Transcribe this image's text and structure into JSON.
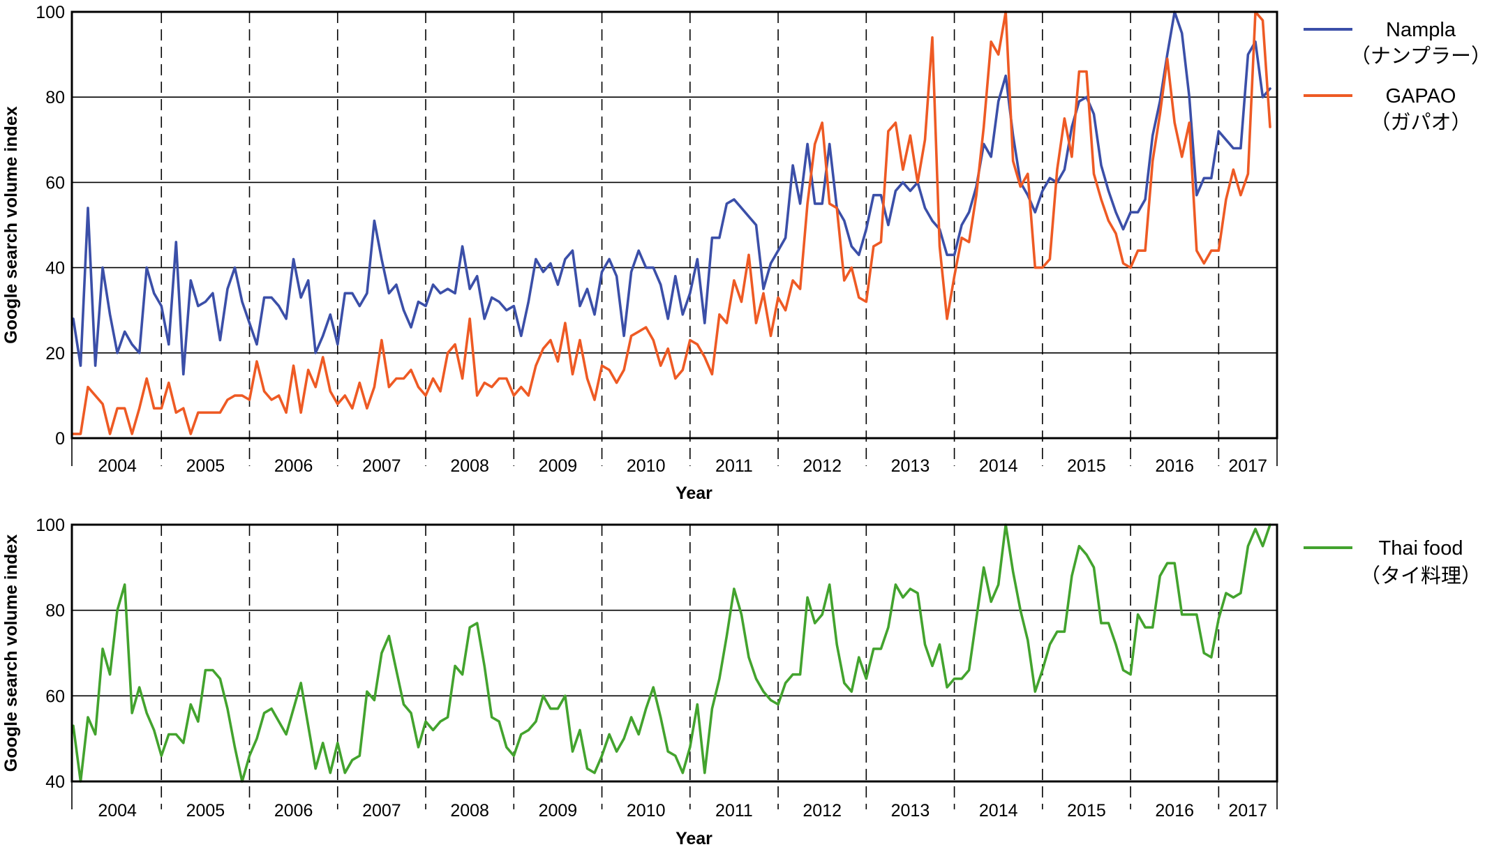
{
  "colors": {
    "nampla": "#3b4fa8",
    "gapao": "#ee5a24",
    "thai": "#43a32e"
  },
  "chart_data": [
    {
      "type": "line",
      "ylabel": "Google search volume index",
      "xlabel": "Year",
      "ylim": [
        0,
        100
      ],
      "yticks": [
        "0",
        "20",
        "40",
        "60",
        "80",
        "100"
      ],
      "year_labels": [
        "2004",
        "2005",
        "2006",
        "2007",
        "2008",
        "2009",
        "2010",
        "2011",
        "2012",
        "2013",
        "2014",
        "2015",
        "2016",
        "2017"
      ],
      "x_range": [
        "2004-01",
        "2017-06"
      ],
      "grid": "horizontal solid gridlines, dashed vertical year boundaries",
      "legend_position": "right",
      "series": [
        {
          "name": "Nampla",
          "name_jp": "（ナンプラー）",
          "color_key": "nampla",
          "values": [
            28,
            17,
            54,
            17,
            40,
            29,
            20,
            25,
            22,
            20,
            40,
            34,
            31,
            22,
            46,
            15,
            37,
            31,
            32,
            34,
            23,
            35,
            40,
            32,
            27,
            22,
            33,
            33,
            31,
            28,
            42,
            33,
            37,
            20,
            24,
            29,
            22,
            34,
            34,
            31,
            34,
            51,
            42,
            34,
            36,
            30,
            26,
            32,
            31,
            36,
            34,
            35,
            34,
            45,
            35,
            38,
            28,
            33,
            32,
            30,
            31,
            24,
            32,
            42,
            39,
            41,
            36,
            42,
            44,
            31,
            35,
            29,
            39,
            42,
            38,
            24,
            39,
            44,
            40,
            40,
            36,
            28,
            38,
            29,
            34,
            42,
            27,
            47,
            47,
            55,
            56,
            54,
            52,
            50,
            35,
            41,
            44,
            47,
            64,
            55,
            69,
            55,
            55,
            69,
            54,
            51,
            45,
            43,
            49,
            57,
            57,
            50,
            58,
            60,
            58,
            60,
            54,
            51,
            49,
            43,
            43,
            50,
            53,
            59,
            69,
            66,
            79,
            85,
            71,
            60,
            57,
            53,
            58,
            61,
            60,
            63,
            73,
            79,
            80,
            76,
            64,
            58,
            53,
            49,
            53,
            53,
            56,
            71,
            79,
            90,
            100,
            95,
            80,
            57,
            61,
            61,
            72,
            70,
            68,
            68,
            90,
            93,
            80,
            82
          ]
        },
        {
          "name": "GAPAO",
          "name_jp": "（ガパオ）",
          "color_key": "gapao",
          "values": [
            1,
            1,
            12,
            10,
            8,
            1,
            7,
            7,
            1,
            7,
            14,
            7,
            7,
            13,
            6,
            7,
            1,
            6,
            6,
            6,
            6,
            9,
            10,
            10,
            9,
            18,
            11,
            9,
            10,
            6,
            17,
            6,
            16,
            12,
            19,
            11,
            8,
            10,
            7,
            13,
            7,
            12,
            23,
            12,
            14,
            14,
            16,
            12,
            10,
            14,
            11,
            20,
            22,
            14,
            28,
            10,
            13,
            12,
            14,
            14,
            10,
            12,
            10,
            17,
            21,
            23,
            18,
            27,
            15,
            23,
            14,
            9,
            17,
            16,
            13,
            16,
            24,
            25,
            26,
            23,
            17,
            21,
            14,
            16,
            23,
            22,
            19,
            15,
            29,
            27,
            37,
            32,
            43,
            27,
            34,
            24,
            33,
            30,
            37,
            35,
            55,
            69,
            74,
            55,
            54,
            37,
            40,
            33,
            32,
            45,
            46,
            72,
            74,
            63,
            71,
            60,
            70,
            94,
            45,
            28,
            38,
            47,
            46,
            57,
            73,
            93,
            90,
            100,
            65,
            59,
            62,
            40,
            40,
            42,
            63,
            75,
            66,
            86,
            86,
            62,
            56,
            51,
            48,
            41,
            40,
            44,
            44,
            65,
            76,
            89,
            74,
            66,
            74,
            44,
            41,
            44,
            44,
            56,
            63,
            57,
            62,
            100,
            98,
            73
          ]
        }
      ]
    },
    {
      "type": "line",
      "ylabel": "Google search volume index",
      "xlabel": "Year",
      "ylim": [
        40,
        100
      ],
      "yticks": [
        "40",
        "60",
        "80",
        "100"
      ],
      "year_labels": [
        "2004",
        "2005",
        "2006",
        "2007",
        "2008",
        "2009",
        "2010",
        "2011",
        "2012",
        "2013",
        "2014",
        "2015",
        "2016",
        "2017"
      ],
      "x_range": [
        "2004-01",
        "2017-06"
      ],
      "grid": "horizontal solid gridlines, dashed vertical year boundaries",
      "legend_position": "right",
      "series": [
        {
          "name": "Thai food",
          "name_jp": "（タイ料理）",
          "color_key": "thai",
          "values": [
            53,
            40,
            55,
            51,
            71,
            65,
            80,
            86,
            56,
            62,
            56,
            52,
            46,
            51,
            51,
            49,
            58,
            54,
            66,
            66,
            64,
            57,
            48,
            40,
            46,
            50,
            56,
            57,
            54,
            51,
            57,
            63,
            53,
            43,
            49,
            42,
            49,
            42,
            45,
            46,
            61,
            59,
            70,
            74,
            66,
            58,
            56,
            48,
            54,
            52,
            54,
            55,
            67,
            65,
            76,
            77,
            67,
            55,
            54,
            48,
            46,
            51,
            52,
            54,
            60,
            57,
            57,
            60,
            47,
            52,
            43,
            42,
            46,
            51,
            47,
            50,
            55,
            51,
            57,
            62,
            55,
            47,
            46,
            42,
            48,
            58,
            42,
            57,
            64,
            74,
            85,
            79,
            69,
            64,
            61,
            59,
            58,
            63,
            65,
            65,
            83,
            77,
            79,
            86,
            72,
            63,
            61,
            69,
            64,
            71,
            71,
            76,
            86,
            83,
            85,
            84,
            72,
            67,
            72,
            62,
            64,
            64,
            66,
            78,
            90,
            82,
            86,
            100,
            89,
            80,
            73,
            61,
            66,
            72,
            75,
            75,
            88,
            95,
            93,
            90,
            77,
            77,
            72,
            66,
            65,
            79,
            76,
            76,
            88,
            91,
            91,
            79,
            79,
            79,
            70,
            69,
            78,
            84,
            83,
            84,
            95,
            99,
            95,
            100
          ]
        }
      ]
    }
  ]
}
